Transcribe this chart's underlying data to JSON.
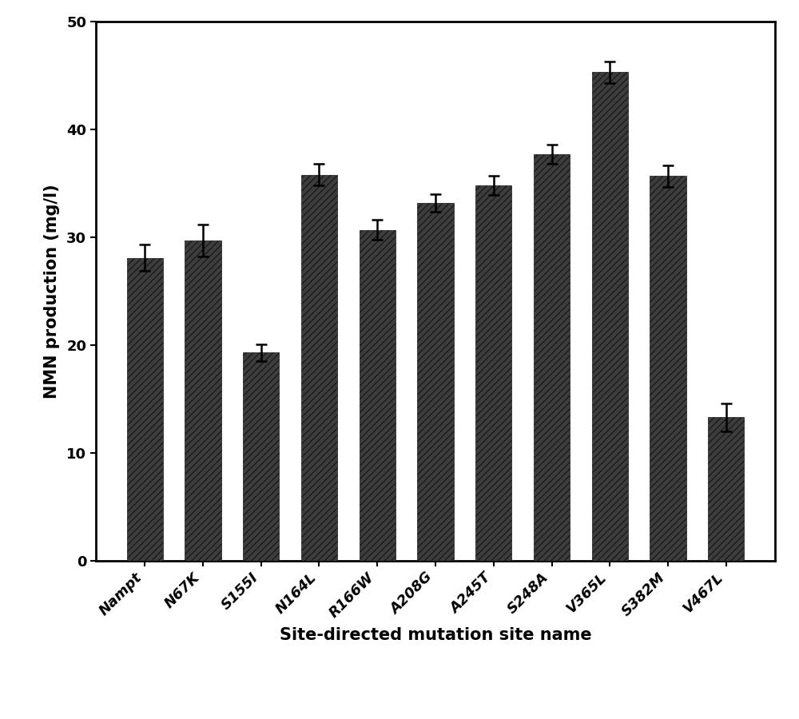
{
  "categories": [
    "Nampt",
    "N67K",
    "S155I",
    "N164L",
    "R166W",
    "A208G",
    "A245T",
    "S248A",
    "V365L",
    "S382M",
    "V467L"
  ],
  "values": [
    28.1,
    29.7,
    19.3,
    35.8,
    30.7,
    33.2,
    34.8,
    37.7,
    45.3,
    35.7,
    13.3
  ],
  "errors": [
    1.2,
    1.5,
    0.8,
    1.0,
    0.9,
    0.8,
    0.9,
    0.9,
    1.0,
    1.0,
    1.3
  ],
  "bar_color": "#3d3d3d",
  "hatch_pattern": "////",
  "xlabel": "Site-directed mutation site name",
  "ylabel": "NMN production (mg/l)",
  "ylim": [
    0,
    50
  ],
  "yticks": [
    0,
    10,
    20,
    30,
    40,
    50
  ],
  "label_fontsize": 15,
  "tick_fontsize": 13,
  "bar_width": 0.62,
  "background_color": "#ffffff",
  "edge_color": "#1a1a1a"
}
